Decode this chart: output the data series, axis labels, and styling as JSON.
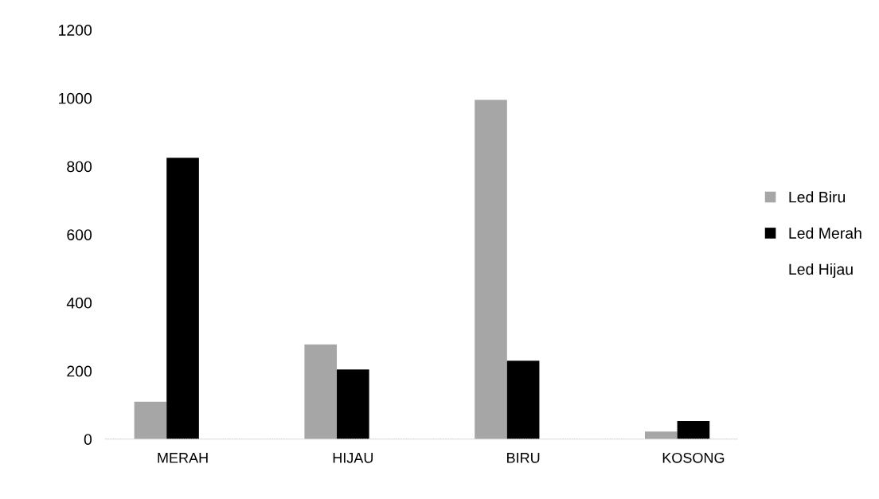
{
  "chart_data": {
    "type": "bar",
    "categories": [
      "MERAH",
      "HIJAU",
      "BIRU",
      "KOSONG"
    ],
    "series": [
      {
        "name": "Led Biru",
        "color": "#a6a6a6",
        "values": [
          110,
          278,
          995,
          22
        ]
      },
      {
        "name": "Led Merah",
        "color": "#000000",
        "values": [
          825,
          204,
          230,
          53
        ]
      },
      {
        "name": "Led Hijau",
        "values": [
          null,
          null,
          null,
          null
        ]
      }
    ],
    "ylim": [
      0,
      1200
    ],
    "yticks": [
      0,
      200,
      400,
      600,
      800,
      1000,
      1200
    ],
    "grid": false,
    "legend": "right"
  }
}
